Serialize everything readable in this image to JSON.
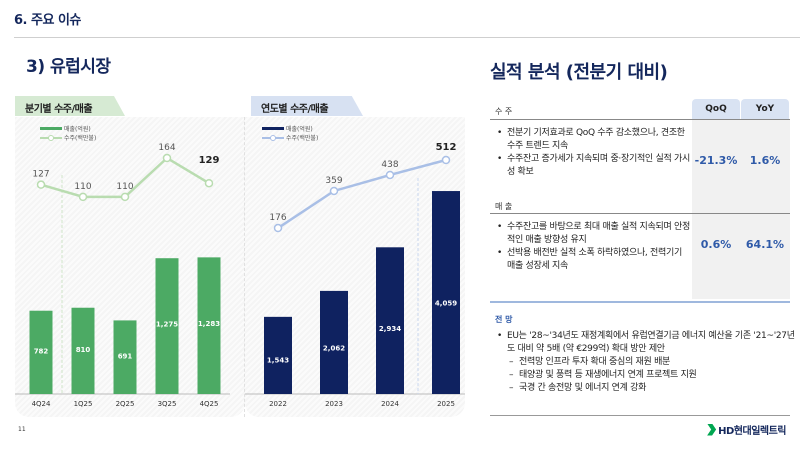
{
  "header": {
    "section": "6. 주요 이슈",
    "subtitle": "3) 유럽시장"
  },
  "chart_data": [
    {
      "type": "bar",
      "title": "분기별 수주/매출",
      "categories": [
        "4Q24",
        "1Q25",
        "2Q25",
        "3Q25",
        "4Q25"
      ],
      "series": [
        {
          "name": "매출(억원)",
          "kind": "bar",
          "color": "#4caa64",
          "values": [
            782,
            810,
            691,
            1275,
            1283
          ],
          "labels": [
            "782",
            "810",
            "691",
            "1,275",
            "1,283"
          ]
        },
        {
          "name": "수주(백만불)",
          "kind": "line",
          "color": "#b9dcb0",
          "values": [
            127,
            110,
            110,
            164,
            129
          ],
          "labels": [
            "127",
            "110",
            "110",
            "164",
            "129"
          ]
        }
      ],
      "highlight_last": true,
      "legend": "top-left"
    },
    {
      "type": "bar",
      "title": "연도별 수주/매출",
      "categories": [
        "2022",
        "2023",
        "2024",
        "2025"
      ],
      "series": [
        {
          "name": "매출(억원)",
          "kind": "bar",
          "color": "#0f2260",
          "values": [
            1543,
            2062,
            2934,
            4059
          ],
          "labels": [
            "1,543",
            "2,062",
            "2,934",
            "4,059"
          ]
        },
        {
          "name": "수주(백만불)",
          "kind": "line",
          "color": "#a9bfe6",
          "values": [
            176,
            359,
            438,
            512
          ],
          "labels": [
            "176",
            "359",
            "438",
            "512"
          ]
        }
      ],
      "highlight_last": true,
      "legend": "top-left"
    }
  ],
  "analysis": {
    "title": "실적 분석 (전분기 대비)",
    "columns": [
      "QoQ",
      "YoY"
    ],
    "rows": [
      {
        "label": "수 주",
        "bullets": [
          "전분기 기저효과로 QoQ 수주 감소했으나, 견조한 수주 트렌드 지속",
          "수주잔고 증가세가 지속되며 중·장기적인 실적 가시성 확보"
        ],
        "qoq": "-21.3%",
        "yoy": "1.6%"
      },
      {
        "label": "매 출",
        "bullets": [
          "수주잔고를 바탕으로 최대 매출 실적 지속되며 안정적인 매출 방향성 유지",
          "선박용 배전반 실적 소폭 하락하였으나, 전력기기 매출 성장세 지속"
        ],
        "qoq": "0.6%",
        "yoy": "64.1%"
      }
    ],
    "outlook": {
      "label": "전 망",
      "bullet": "EU는 '28~'34년도 재정계획에서 유럽연결기금 에너지 예산을 기존 '21~'27년도 대비 약 5배 (약 €299억) 확대 방안 제안",
      "sub_items": [
        "전력망 인프라 투자 확대 중심의 재원 배분",
        "태양광 및 풍력 등 재생에너지 연계 프로젝트 지원",
        "국경 간 송전망 및 에너지 연계 강화"
      ]
    }
  },
  "footer": {
    "page": "11",
    "logo": "HD현대일렉트릭"
  }
}
